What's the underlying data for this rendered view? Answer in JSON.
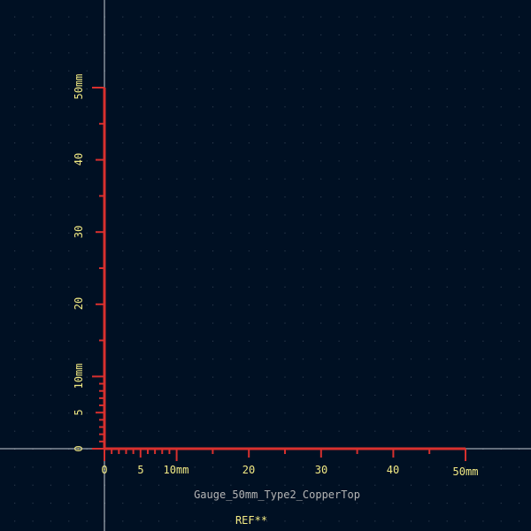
{
  "colors": {
    "background": "#001023",
    "grid_dot": "#3b4a5c",
    "crosshair": "#c9ced6",
    "gauge": "#d8302e",
    "label_yellow": "#f2ea84",
    "label_gray": "#b5b5b5"
  },
  "gauge": {
    "y_labels": [
      "0",
      "5",
      "10mm",
      "20",
      "30",
      "40",
      "50mm"
    ],
    "x_labels": [
      "0",
      "5",
      "10mm",
      "20",
      "30",
      "40",
      "50mm"
    ]
  },
  "footprint": {
    "value_text": "Gauge_50mm_Type2_CopperTop",
    "reference_text": "REF**"
  }
}
